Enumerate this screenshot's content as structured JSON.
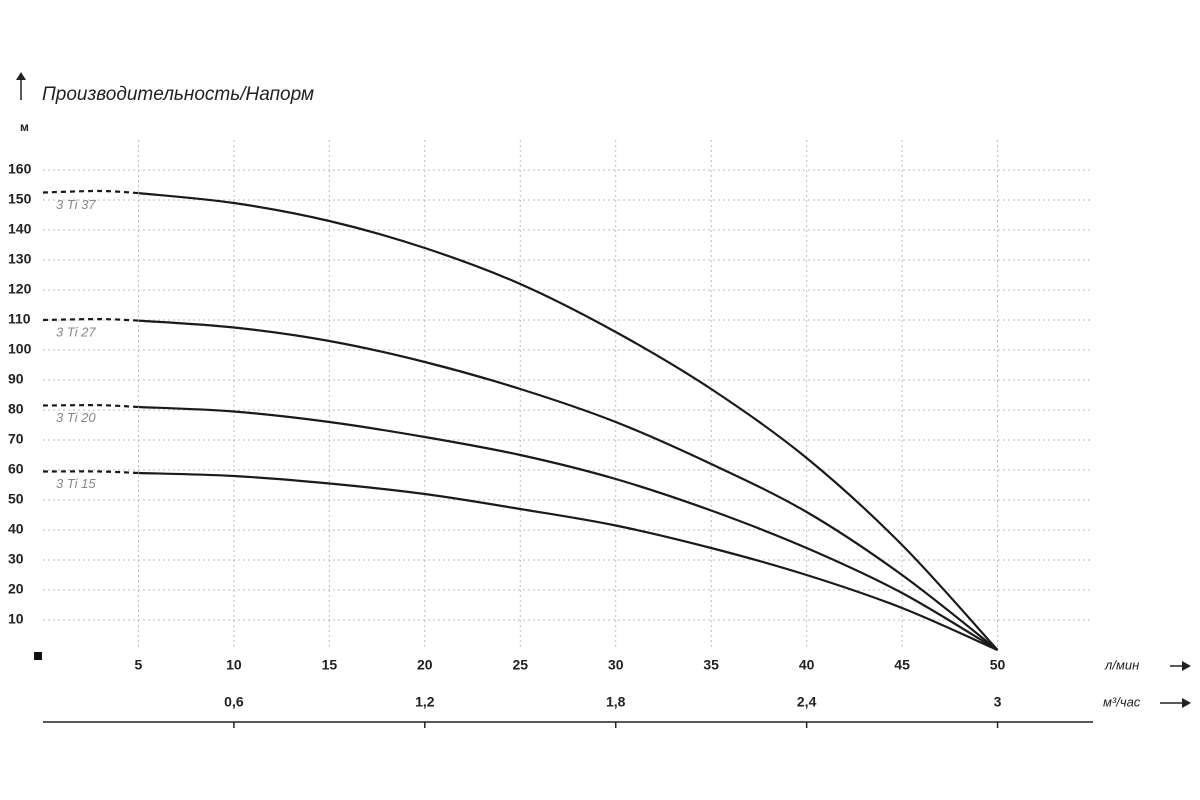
{
  "chart_data": {
    "type": "line",
    "title": "Производительность/Напорм",
    "y_unit": "м",
    "x_unit": "л/мин",
    "x2_unit": "м³/час",
    "x": [
      0,
      3,
      5,
      10,
      15,
      20,
      25,
      30,
      35,
      40,
      45,
      50
    ],
    "dashed_below_x": 5,
    "series": [
      {
        "name": "3 Ti 37",
        "color": "#1a1a1a",
        "values": [
          152.5,
          153,
          152.3,
          149,
          143,
          134,
          122,
          106,
          87,
          64,
          35,
          0
        ]
      },
      {
        "name": "3 Ti 27",
        "color": "#1a1a1a",
        "values": [
          110,
          110.3,
          109.8,
          107.5,
          103,
          96,
          87,
          76,
          62,
          46,
          25,
          0
        ]
      },
      {
        "name": "3 Ti 20",
        "color": "#1a1a1a",
        "values": [
          81.5,
          81.6,
          81,
          79.5,
          76,
          71,
          65,
          57,
          46.5,
          34,
          19,
          0
        ]
      },
      {
        "name": "3 Ti 15",
        "color": "#1a1a1a",
        "values": [
          59.5,
          59.5,
          59,
          58,
          55.5,
          52,
          47,
          41.5,
          34,
          25,
          14,
          0
        ]
      }
    ],
    "xlim": [
      0,
      55
    ],
    "xticks": [
      5,
      10,
      15,
      20,
      25,
      30,
      35,
      40,
      45,
      50
    ],
    "x2lim": [
      0,
      3.3
    ],
    "x2ticks": [
      {
        "value": 0.6,
        "label": "0,6"
      },
      {
        "value": 1.2,
        "label": "1,2"
      },
      {
        "value": 1.8,
        "label": "1,8"
      },
      {
        "value": 2.4,
        "label": "2,4"
      },
      3
    ],
    "ylim": [
      0,
      170
    ],
    "yticks": [
      10,
      20,
      30,
      40,
      50,
      60,
      70,
      80,
      90,
      100,
      110,
      120,
      130,
      140,
      150,
      160
    ],
    "grid": true
  }
}
